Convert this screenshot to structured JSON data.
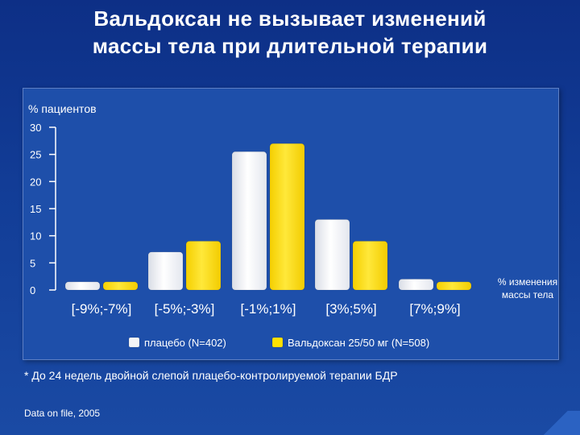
{
  "slide": {
    "title_line1": "Вальдоксан не вызывает изменений",
    "title_line2": "массы тела при длительной терапии",
    "footnote": "* До 24 недель двойной слепой плацебо-контролируемой терапии БДР",
    "source": "Data on file, 2005"
  },
  "colors": {
    "background": "#123d97",
    "panel": "#1e4faa",
    "placebo": "#f4f4f6",
    "valdoxan": "#ffe100"
  },
  "chart_data": {
    "type": "bar",
    "title": "",
    "ylabel": "% пациентов",
    "xlabel_line1": "% изменения",
    "xlabel_line2": "массы тела",
    "ylim": [
      0,
      30
    ],
    "yticks": [
      0,
      5,
      10,
      15,
      20,
      25,
      30
    ],
    "categories": [
      "[-9%;-7%]",
      "[-5%;-3%]",
      "[-1%;1%]",
      "[3%;5%]",
      "[7%;9%]"
    ],
    "series": [
      {
        "name": "плацебо (N=402)",
        "color": "#f4f4f6",
        "values": [
          1.5,
          7,
          25.5,
          13,
          2
        ]
      },
      {
        "name": "Вальдоксан 25/50 мг (N=508)",
        "color": "#ffe100",
        "values": [
          1.5,
          9,
          27,
          9,
          1.5
        ]
      }
    ],
    "grid": false,
    "legend_position": "bottom"
  }
}
